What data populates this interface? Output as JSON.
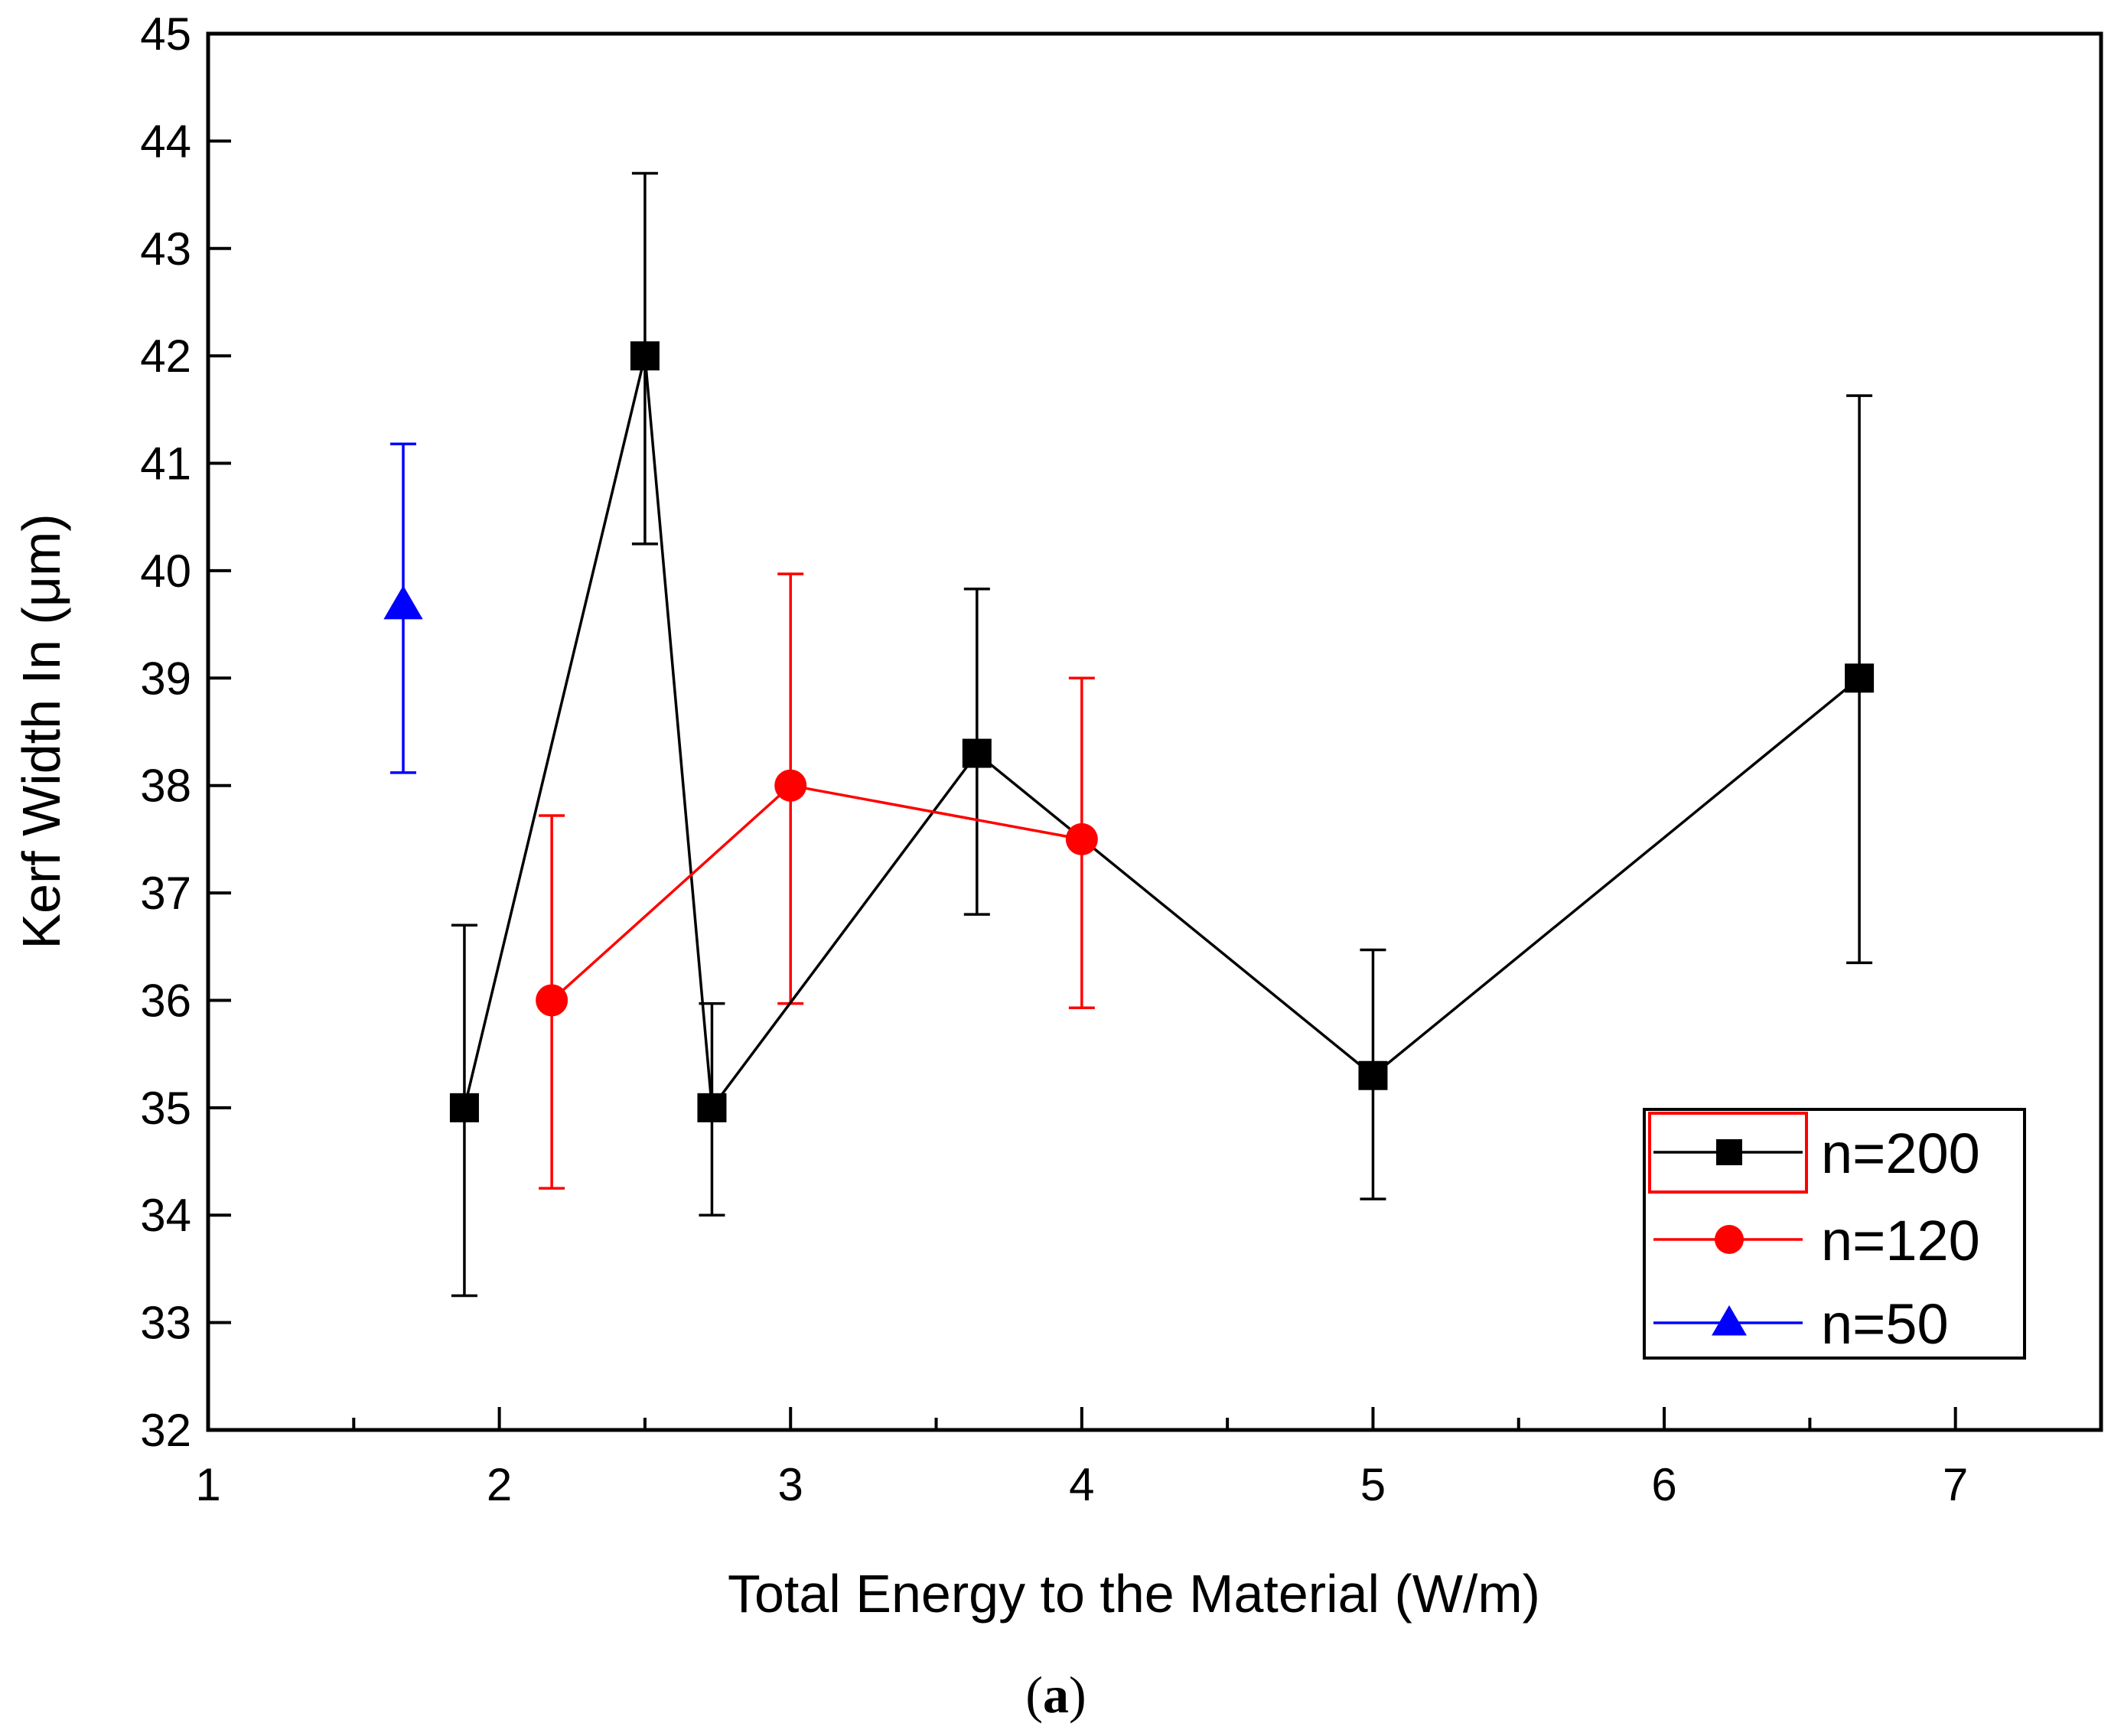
{
  "chart_data": {
    "type": "line",
    "xlabel": "Total Energy to the Material (W/m)",
    "ylabel": "Kerf Width In (μm)",
    "xlim": [
      1,
      7.5
    ],
    "ylim": [
      32,
      45
    ],
    "xticks": [
      1,
      2,
      3,
      4,
      5,
      6,
      7
    ],
    "yticks": [
      32,
      33,
      34,
      35,
      36,
      37,
      38,
      39,
      40,
      41,
      42,
      43,
      44,
      45
    ],
    "xtick_labels": [
      "1",
      "2",
      "3",
      "4",
      "5",
      "6",
      "7"
    ],
    "ytick_labels": [
      "32",
      "33",
      "34",
      "35",
      "36",
      "37",
      "38",
      "39",
      "40",
      "41",
      "42",
      "43",
      "44",
      "45"
    ],
    "legend_position": "bottom-right",
    "series": [
      {
        "name": "n=200",
        "marker": "square",
        "color": "#000000",
        "x": [
          1.88,
          2.5,
          2.73,
          3.64,
          5.0,
          6.67
        ],
        "y": [
          35.0,
          42.0,
          35.0,
          38.3,
          35.3,
          39.0
        ],
        "err_low": [
          33.25,
          40.25,
          34.0,
          36.8,
          34.15,
          36.35
        ],
        "err_high": [
          36.7,
          43.7,
          35.97,
          39.83,
          36.47,
          41.63
        ]
      },
      {
        "name": "n=120",
        "marker": "circle",
        "color": "#ff0000",
        "x": [
          2.18,
          3.0,
          4.0
        ],
        "y": [
          36.0,
          38.0,
          37.5
        ],
        "err_low": [
          34.25,
          35.97,
          35.93
        ],
        "err_high": [
          37.72,
          39.97,
          39.0
        ]
      },
      {
        "name": "n=50",
        "marker": "triangle",
        "color": "#0000ff",
        "x": [
          1.67
        ],
        "y": [
          39.68
        ],
        "err_low": [
          38.12
        ],
        "err_high": [
          41.18
        ]
      }
    ]
  },
  "caption": {
    "open": "(",
    "letter": "a",
    "close": ")"
  }
}
